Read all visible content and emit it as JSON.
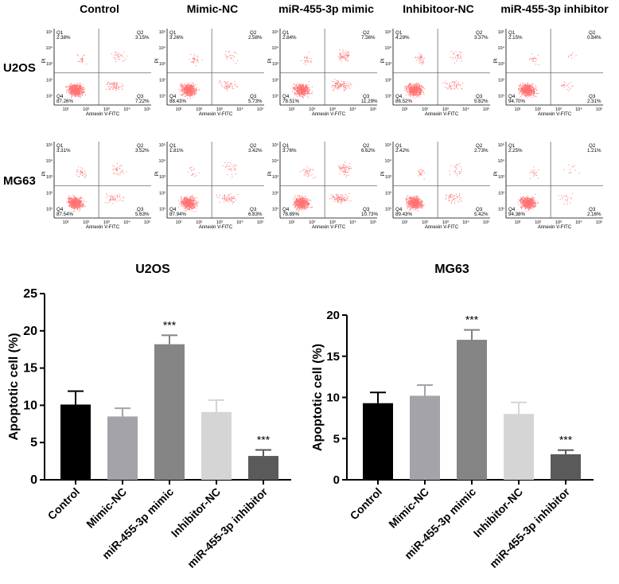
{
  "flow": {
    "column_titles": [
      "Control",
      "Mimic-NC",
      "miR-455-3p mimic",
      "Inhibitoor-NC",
      "miR-455-3p inhibitor"
    ],
    "row_titles": [
      "U2OS",
      "MG63"
    ],
    "axis_labels": {
      "x": "Annexin V-FITC",
      "y": "PI"
    },
    "quadrant_labels": [
      "Q1",
      "Q2",
      "Q3",
      "Q4"
    ],
    "x_ticks": [
      "10¹",
      "10²",
      "10³",
      "10⁴",
      "10⁵"
    ],
    "y_ticks": [
      "10¹",
      "10²",
      "10³",
      "10⁴",
      "10⁵"
    ],
    "dot_color": "#ff0000",
    "panels": [
      [
        {
          "q1": "2.38%",
          "q2": "3.15%",
          "q3": "7.22%",
          "q4": "87.26%"
        },
        {
          "q1": "3.26%",
          "q2": "2.58%",
          "q3": "5.73%",
          "q4": "88.43%"
        },
        {
          "q1": "2.84%",
          "q2": "7.36%",
          "q3": "11.29%",
          "q4": "78.51%"
        },
        {
          "q1": "4.29%",
          "q2": "3.37%",
          "q3": "5.82%",
          "q4": "86.52%"
        },
        {
          "q1": "2.15%",
          "q2": "0.84%",
          "q3": "2.31%",
          "q4": "94.70%"
        }
      ],
      [
        {
          "q1": "3.31%",
          "q2": "3.52%",
          "q3": "5.63%",
          "q4": "87.54%"
        },
        {
          "q1": "1.81%",
          "q2": "3.42%",
          "q3": "6.83%",
          "q4": "87.94%"
        },
        {
          "q1": "3.76%",
          "q2": "6.62%",
          "q3": "10.73%",
          "q4": "78.89%"
        },
        {
          "q1": "2.42%",
          "q2": "2.73%",
          "q3": "5.42%",
          "q4": "89.43%"
        },
        {
          "q1": "2.25%",
          "q2": "1.21%",
          "q3": "2.16%",
          "q4": "94.38%"
        }
      ]
    ]
  },
  "chart_data": [
    {
      "type": "bar",
      "title": "U2OS",
      "ylabel": "Apoptotic cell (%)",
      "xlabel": "",
      "categories": [
        "Control",
        "Mimic-NC",
        "miR-455-3p mimic",
        "Inhibitor-NC",
        "miR-455-3p inhibitor"
      ],
      "values": [
        10.1,
        8.5,
        18.2,
        9.1,
        3.2
      ],
      "errors": [
        1.8,
        1.1,
        1.2,
        1.6,
        0.8
      ],
      "annotations": [
        "",
        "",
        "***",
        "",
        "***"
      ],
      "colors": [
        "#000000",
        "#a3a3a8",
        "#858585",
        "#d5d5d5",
        "#5a5a5a"
      ],
      "ylim": [
        0,
        25
      ],
      "yticks": [
        0,
        5,
        10,
        15,
        20,
        25
      ]
    },
    {
      "type": "bar",
      "title": "MG63",
      "ylabel": "Apoptotic cell (%)",
      "xlabel": "",
      "categories": [
        "Control",
        "Mimic-NC",
        "miR-455-3p mimic",
        "Inhibitor-NC",
        "miR-455-3p inhibitor"
      ],
      "values": [
        9.3,
        10.2,
        17.0,
        8.0,
        3.1
      ],
      "errors": [
        1.3,
        1.3,
        1.2,
        1.4,
        0.5
      ],
      "annotations": [
        "",
        "",
        "***",
        "",
        "***"
      ],
      "colors": [
        "#000000",
        "#a3a3a8",
        "#858585",
        "#d5d5d5",
        "#5a5a5a"
      ],
      "ylim": [
        0,
        20
      ],
      "yticks": [
        0,
        5,
        10,
        15,
        20
      ]
    }
  ]
}
